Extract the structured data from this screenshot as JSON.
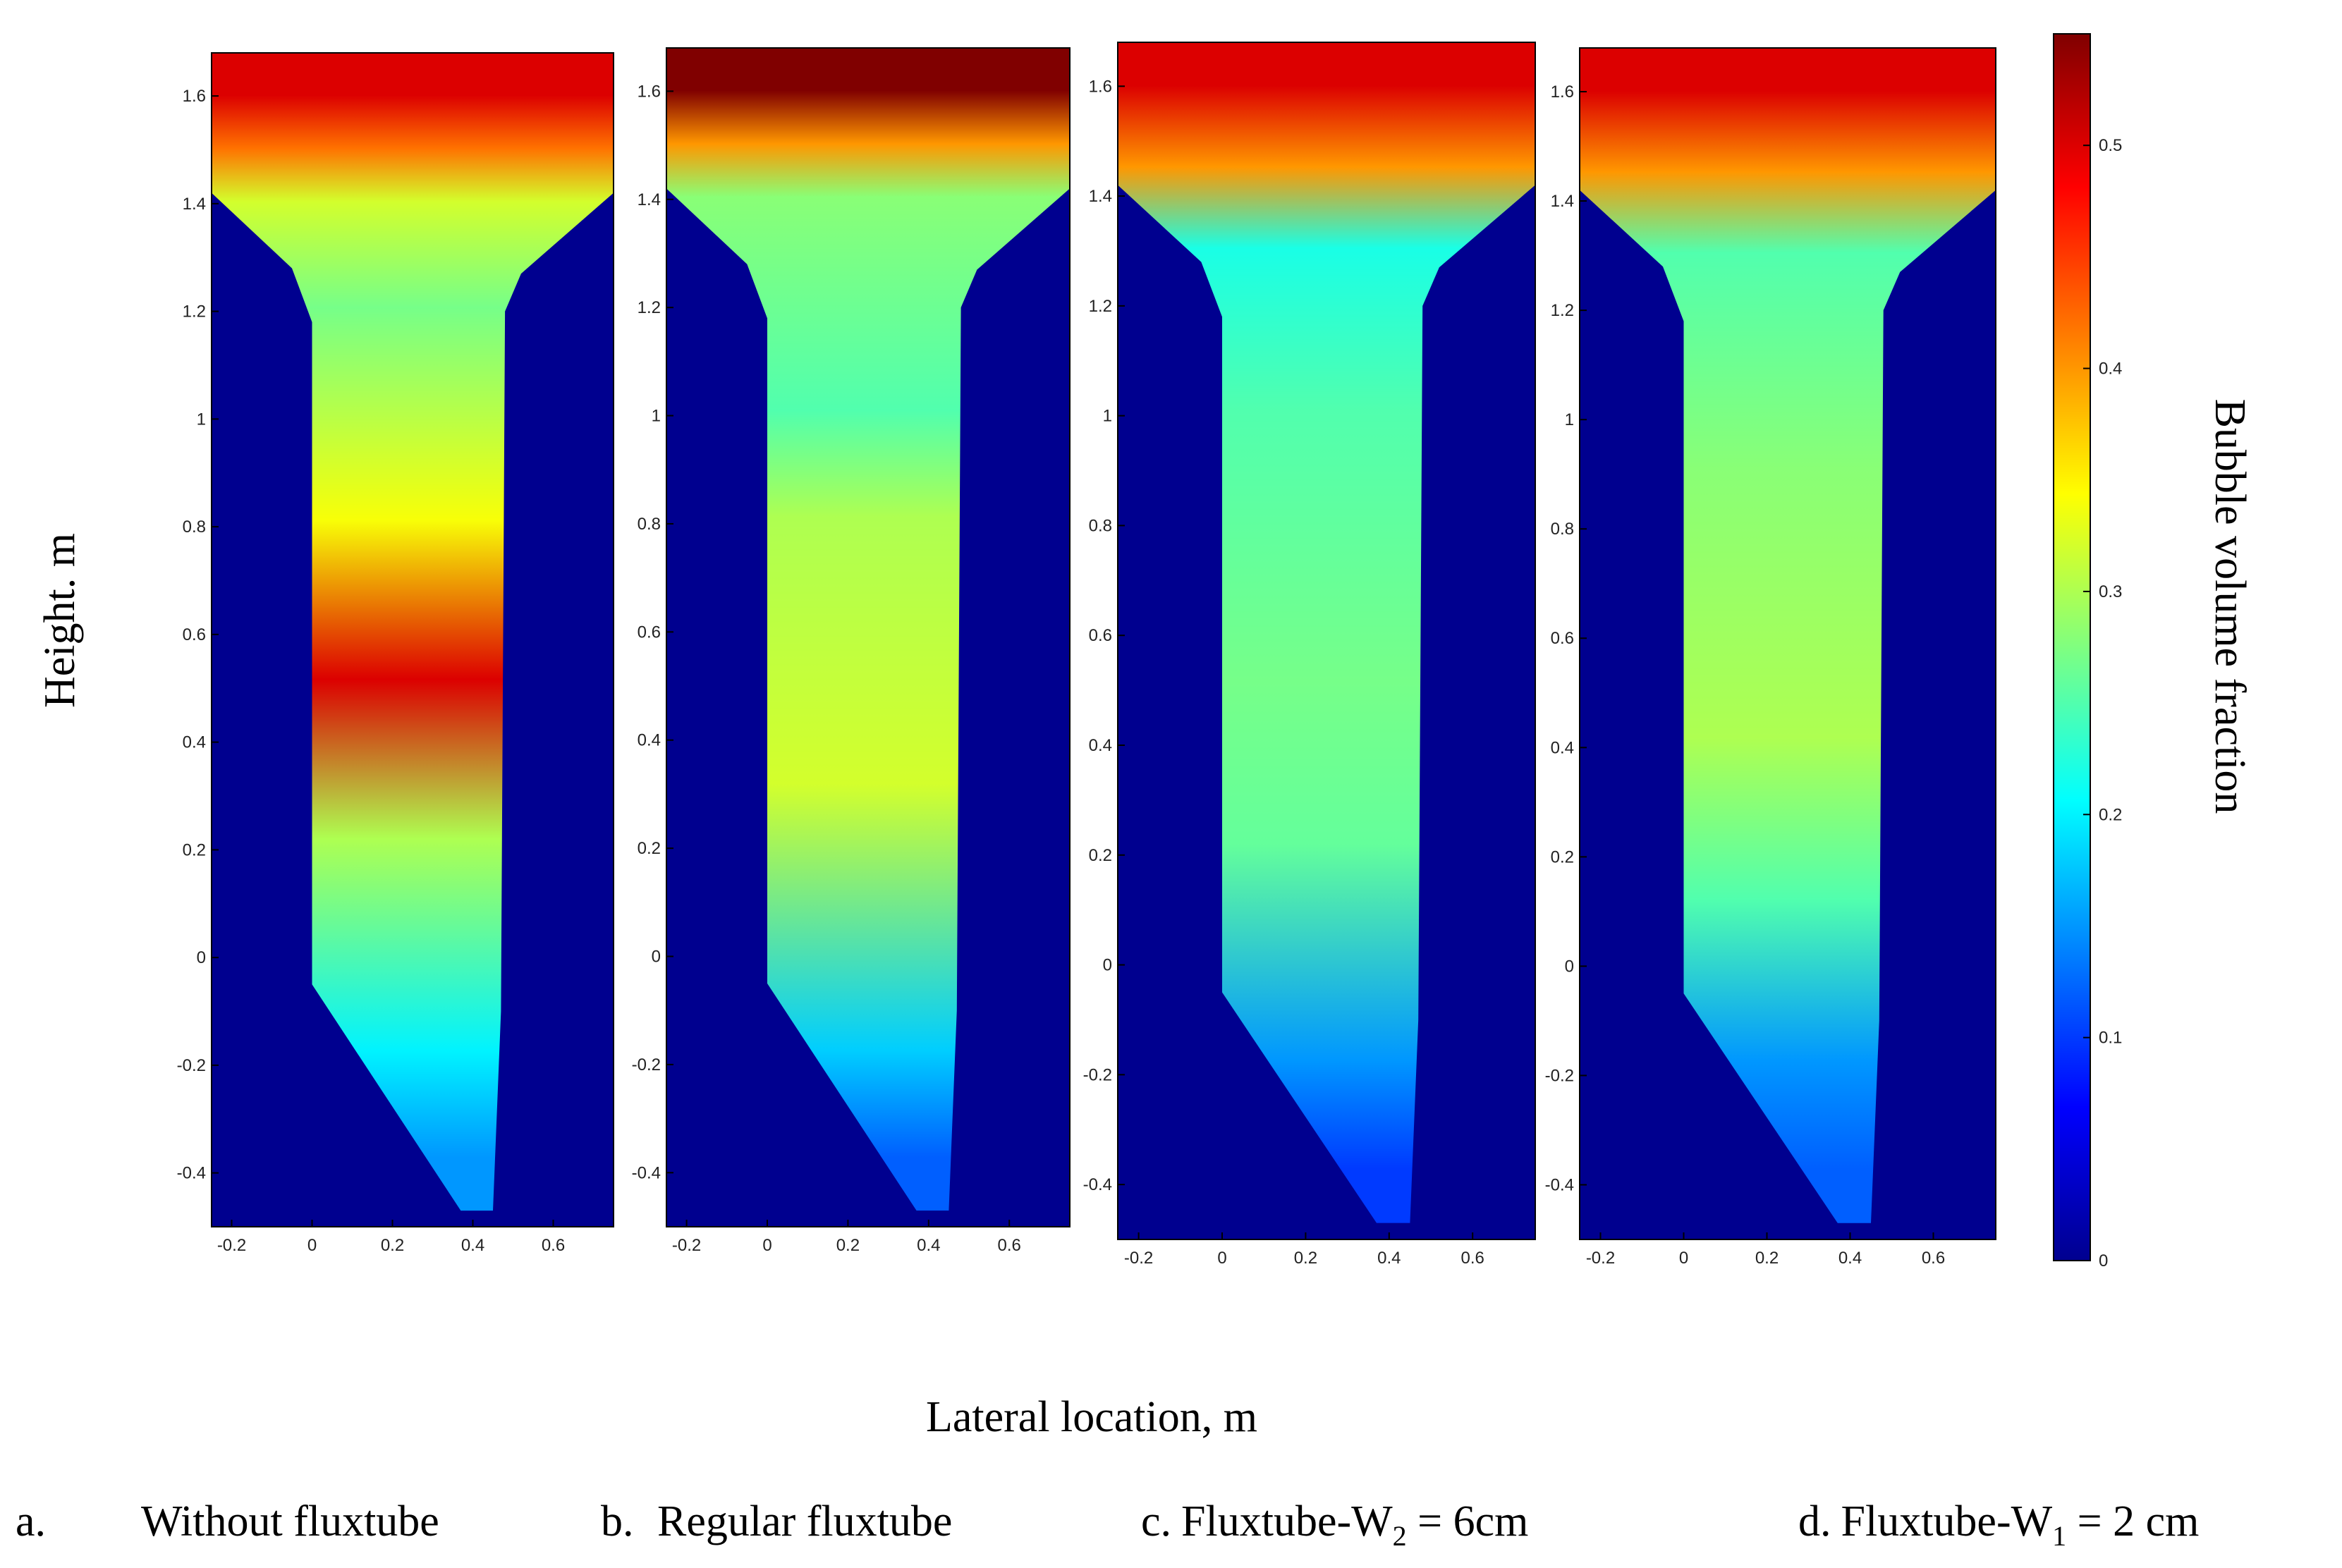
{
  "figure": {
    "ylabel": "Height. m",
    "xlabel": "Lateral location, m",
    "colorbar_label": "Bubble volume fraction",
    "captions": [
      {
        "prefix": "a.",
        "text": "Without fluxtube"
      },
      {
        "prefix": "b.",
        "text": "Regular fluxtube"
      },
      {
        "prefix": "c.",
        "text": "Fluxtube-W",
        "sub": "2",
        "suffix": " = 6cm"
      },
      {
        "prefix": "d.",
        "text": "Fluxtube-W",
        "sub": "1",
        "suffix": " = 2 cm"
      }
    ]
  },
  "colors": {
    "background_outside": "#00008f",
    "colormap": "jet"
  },
  "chart_data": [
    {
      "type": "heatmap",
      "panel": "a",
      "caption": "Without fluxtube",
      "xlim": [
        -0.25,
        0.75
      ],
      "ylim": [
        -0.5,
        1.68
      ],
      "xticks": [
        -0.2,
        0,
        0.2,
        0.4,
        0.6
      ],
      "yticks": [
        -0.4,
        -0.2,
        0,
        0.2,
        0.4,
        0.6,
        0.8,
        1,
        1.2,
        1.4,
        1.6
      ],
      "values_by_height": [
        {
          "height": 1.6,
          "value": 0.5
        },
        {
          "height": 1.5,
          "value": 0.42
        },
        {
          "height": 1.4,
          "value": 0.32
        },
        {
          "height": 1.2,
          "value": 0.27
        },
        {
          "height": 0.8,
          "value": 0.34
        },
        {
          "height": 0.5,
          "value": 0.5
        },
        {
          "height": 0.2,
          "value": 0.3
        },
        {
          "height": -0.2,
          "value": 0.2
        },
        {
          "height": -0.4,
          "value": 0.15
        }
      ]
    },
    {
      "type": "heatmap",
      "panel": "b",
      "caption": "Regular fluxtube",
      "xlim": [
        -0.25,
        0.75
      ],
      "ylim": [
        -0.5,
        1.68
      ],
      "xticks": [
        -0.2,
        0,
        0.2,
        0.4,
        0.6
      ],
      "yticks": [
        -0.4,
        -0.2,
        0,
        0.2,
        0.4,
        0.6,
        0.8,
        1,
        1.2,
        1.4,
        1.6
      ],
      "values_by_height": [
        {
          "height": 1.6,
          "value": 0.55
        },
        {
          "height": 1.5,
          "value": 0.4
        },
        {
          "height": 1.4,
          "value": 0.28
        },
        {
          "height": 1.0,
          "value": 0.25
        },
        {
          "height": 0.8,
          "value": 0.3
        },
        {
          "height": 0.3,
          "value": 0.32
        },
        {
          "height": -0.2,
          "value": 0.18
        },
        {
          "height": -0.4,
          "value": 0.12
        }
      ]
    },
    {
      "type": "heatmap",
      "panel": "c",
      "caption": "Fluxtube-W2 = 6cm",
      "xlim": [
        -0.25,
        0.75
      ],
      "ylim": [
        -0.5,
        1.68
      ],
      "xticks": [
        -0.2,
        0,
        0.2,
        0.4,
        0.6
      ],
      "yticks": [
        -0.4,
        -0.2,
        0,
        0.2,
        0.4,
        0.6,
        0.8,
        1,
        1.2,
        1.4,
        1.6
      ],
      "values_by_height": [
        {
          "height": 1.6,
          "value": 0.5
        },
        {
          "height": 1.45,
          "value": 0.4
        },
        {
          "height": 1.3,
          "value": 0.22
        },
        {
          "height": 1.0,
          "value": 0.25
        },
        {
          "height": 0.5,
          "value": 0.27
        },
        {
          "height": 0.2,
          "value": 0.26
        },
        {
          "height": -0.2,
          "value": 0.15
        },
        {
          "height": -0.4,
          "value": 0.1
        }
      ]
    },
    {
      "type": "heatmap",
      "panel": "d",
      "caption": "Fluxtube-W1 = 2 cm",
      "xlim": [
        -0.25,
        0.75
      ],
      "ylim": [
        -0.5,
        1.68
      ],
      "xticks": [
        -0.2,
        0,
        0.2,
        0.4,
        0.6
      ],
      "yticks": [
        -0.4,
        -0.2,
        0,
        0.2,
        0.4,
        0.6,
        0.8,
        1,
        1.2,
        1.4,
        1.6
      ],
      "values_by_height": [
        {
          "height": 1.6,
          "value": 0.5
        },
        {
          "height": 1.45,
          "value": 0.4
        },
        {
          "height": 1.3,
          "value": 0.25
        },
        {
          "height": 0.9,
          "value": 0.28
        },
        {
          "height": 0.4,
          "value": 0.3
        },
        {
          "height": 0.1,
          "value": 0.25
        },
        {
          "height": -0.2,
          "value": 0.15
        },
        {
          "height": -0.4,
          "value": 0.12
        }
      ]
    },
    {
      "type": "colorbar",
      "label": "Bubble volume fraction",
      "range": [
        0,
        0.55
      ],
      "ticks": [
        0,
        0.1,
        0.2,
        0.3,
        0.4,
        0.5
      ],
      "colormap": "jet"
    }
  ]
}
